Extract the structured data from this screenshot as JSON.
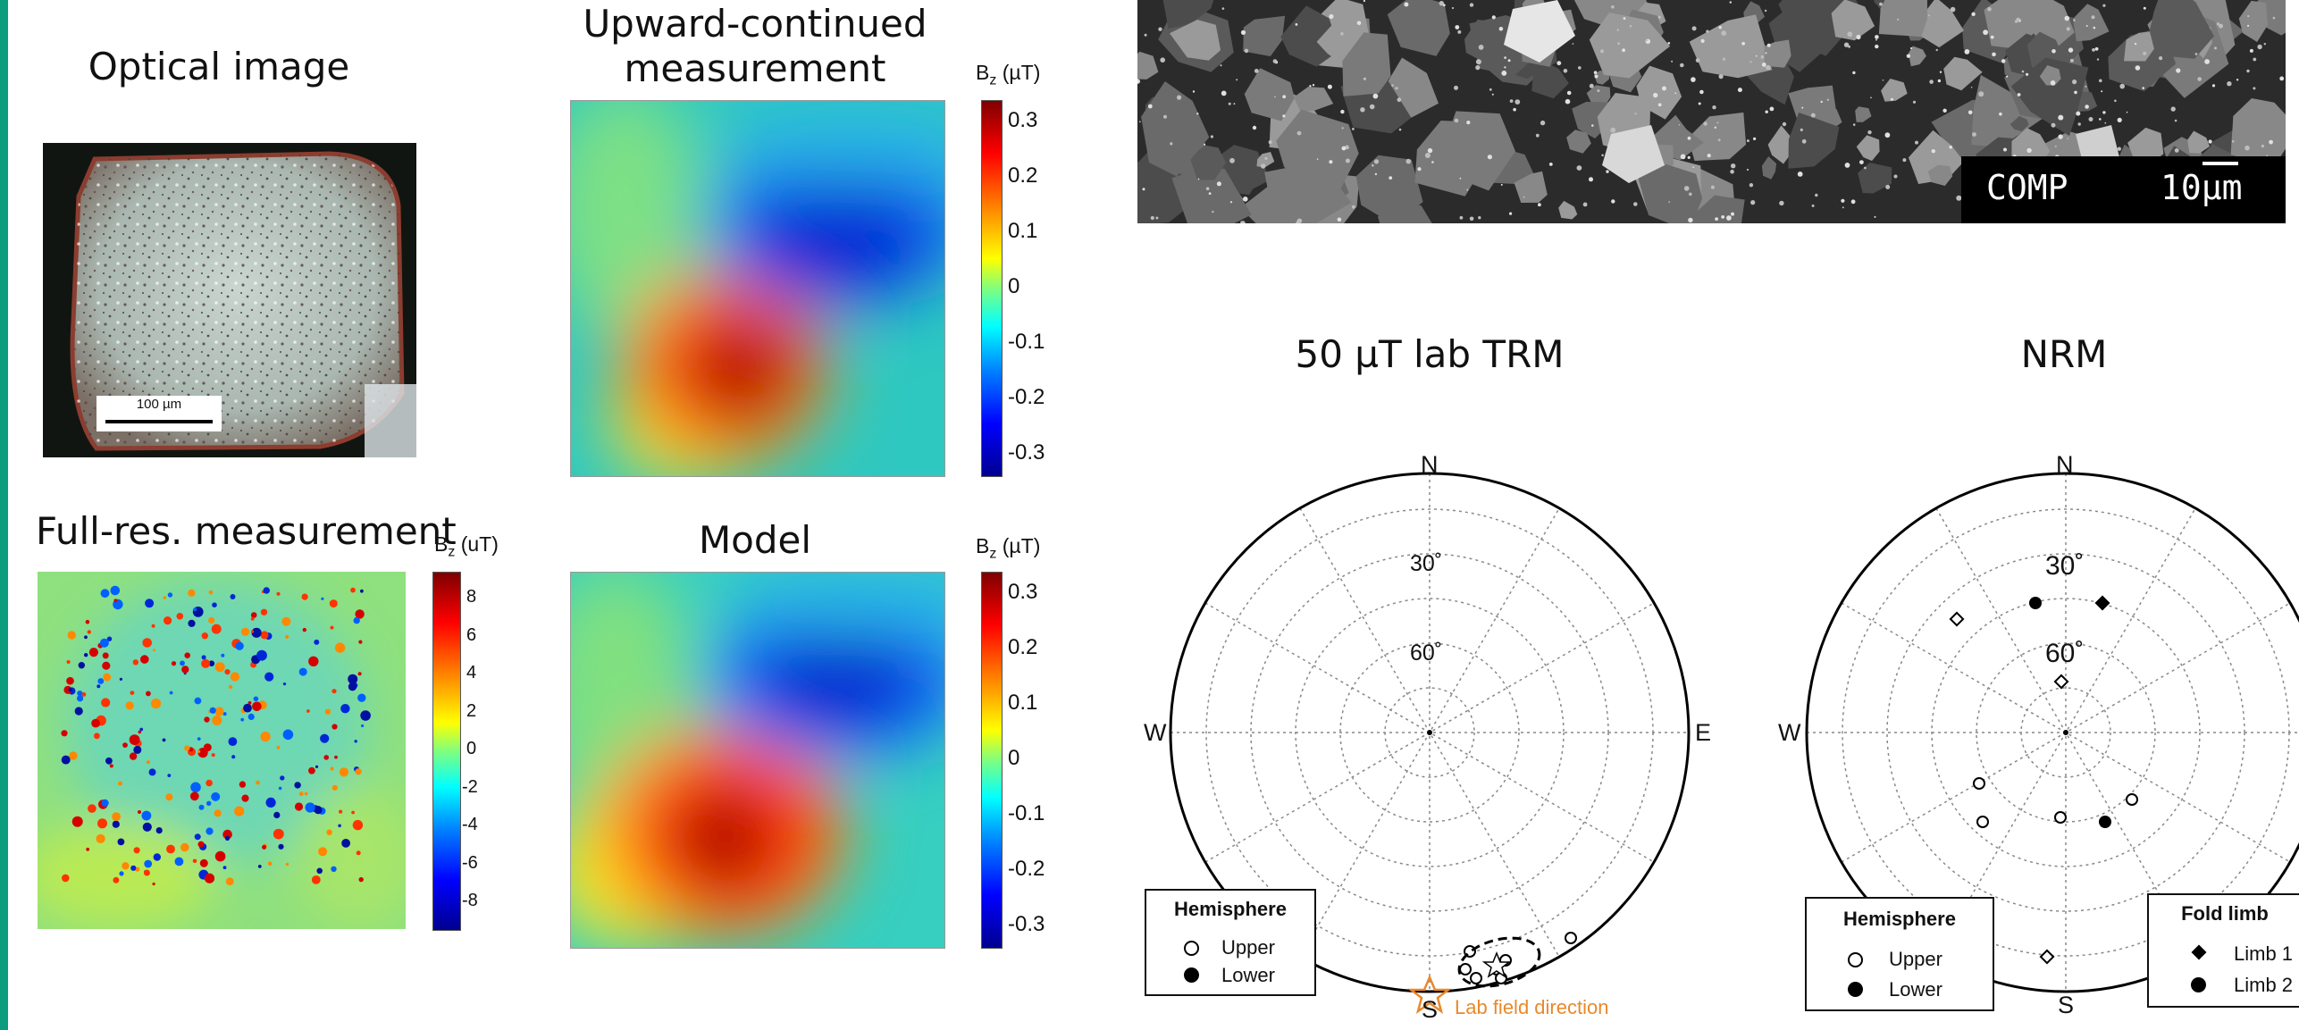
{
  "colors": {
    "accent": "#0d9c7e",
    "orange": "#e8892b"
  },
  "panels": {
    "optical": {
      "title": "Optical image",
      "scale_bar": "100 µm"
    },
    "upward": {
      "title_line1": "Upward-continued",
      "title_line2": "measurement",
      "cb_label_main": "B",
      "cb_label_sub": "z",
      "cb_label_unit": " (µT)",
      "ticks": [
        "0.3",
        "0.2",
        "0.1",
        "0",
        "-0.1",
        "-0.2",
        "-0.3"
      ]
    },
    "fullres": {
      "title": "Full-res. measurement",
      "cb_label_main": "B",
      "cb_label_sub": "z",
      "cb_label_unit": " (uT)",
      "ticks": [
        "8",
        "6",
        "4",
        "2",
        "0",
        "-2",
        "-4",
        "-6",
        "-8"
      ]
    },
    "model": {
      "title": "Model",
      "cb_label_main": "B",
      "cb_label_sub": "z",
      "cb_label_unit": " (µT)",
      "ticks": [
        "0.3",
        "0.2",
        "0.1",
        "0",
        "-0.1",
        "-0.2",
        "-0.3"
      ]
    }
  },
  "sem": {
    "label": "COMP",
    "scale": "10µm"
  },
  "stereonets": {
    "trm": {
      "title": "50 µT lab TRM",
      "north": "N",
      "south": "S",
      "east": "E",
      "west": "W",
      "ring_30": "30˚",
      "ring_60": "60˚",
      "legend": {
        "title": "Hemisphere",
        "upper": "Upper",
        "lower": "Lower"
      },
      "annotation": "Lab field direction"
    },
    "nrm": {
      "title": "NRM",
      "north": "N",
      "south": "S",
      "west": "W",
      "ring_30": "30˚",
      "ring_60": "60˚",
      "legend": {
        "title": "Hemisphere",
        "upper": "Upper",
        "lower": "Lower"
      },
      "fold_legend": {
        "title": "Fold limb",
        "limb1": "Limb 1",
        "limb2": "Limb 2"
      }
    }
  }
}
